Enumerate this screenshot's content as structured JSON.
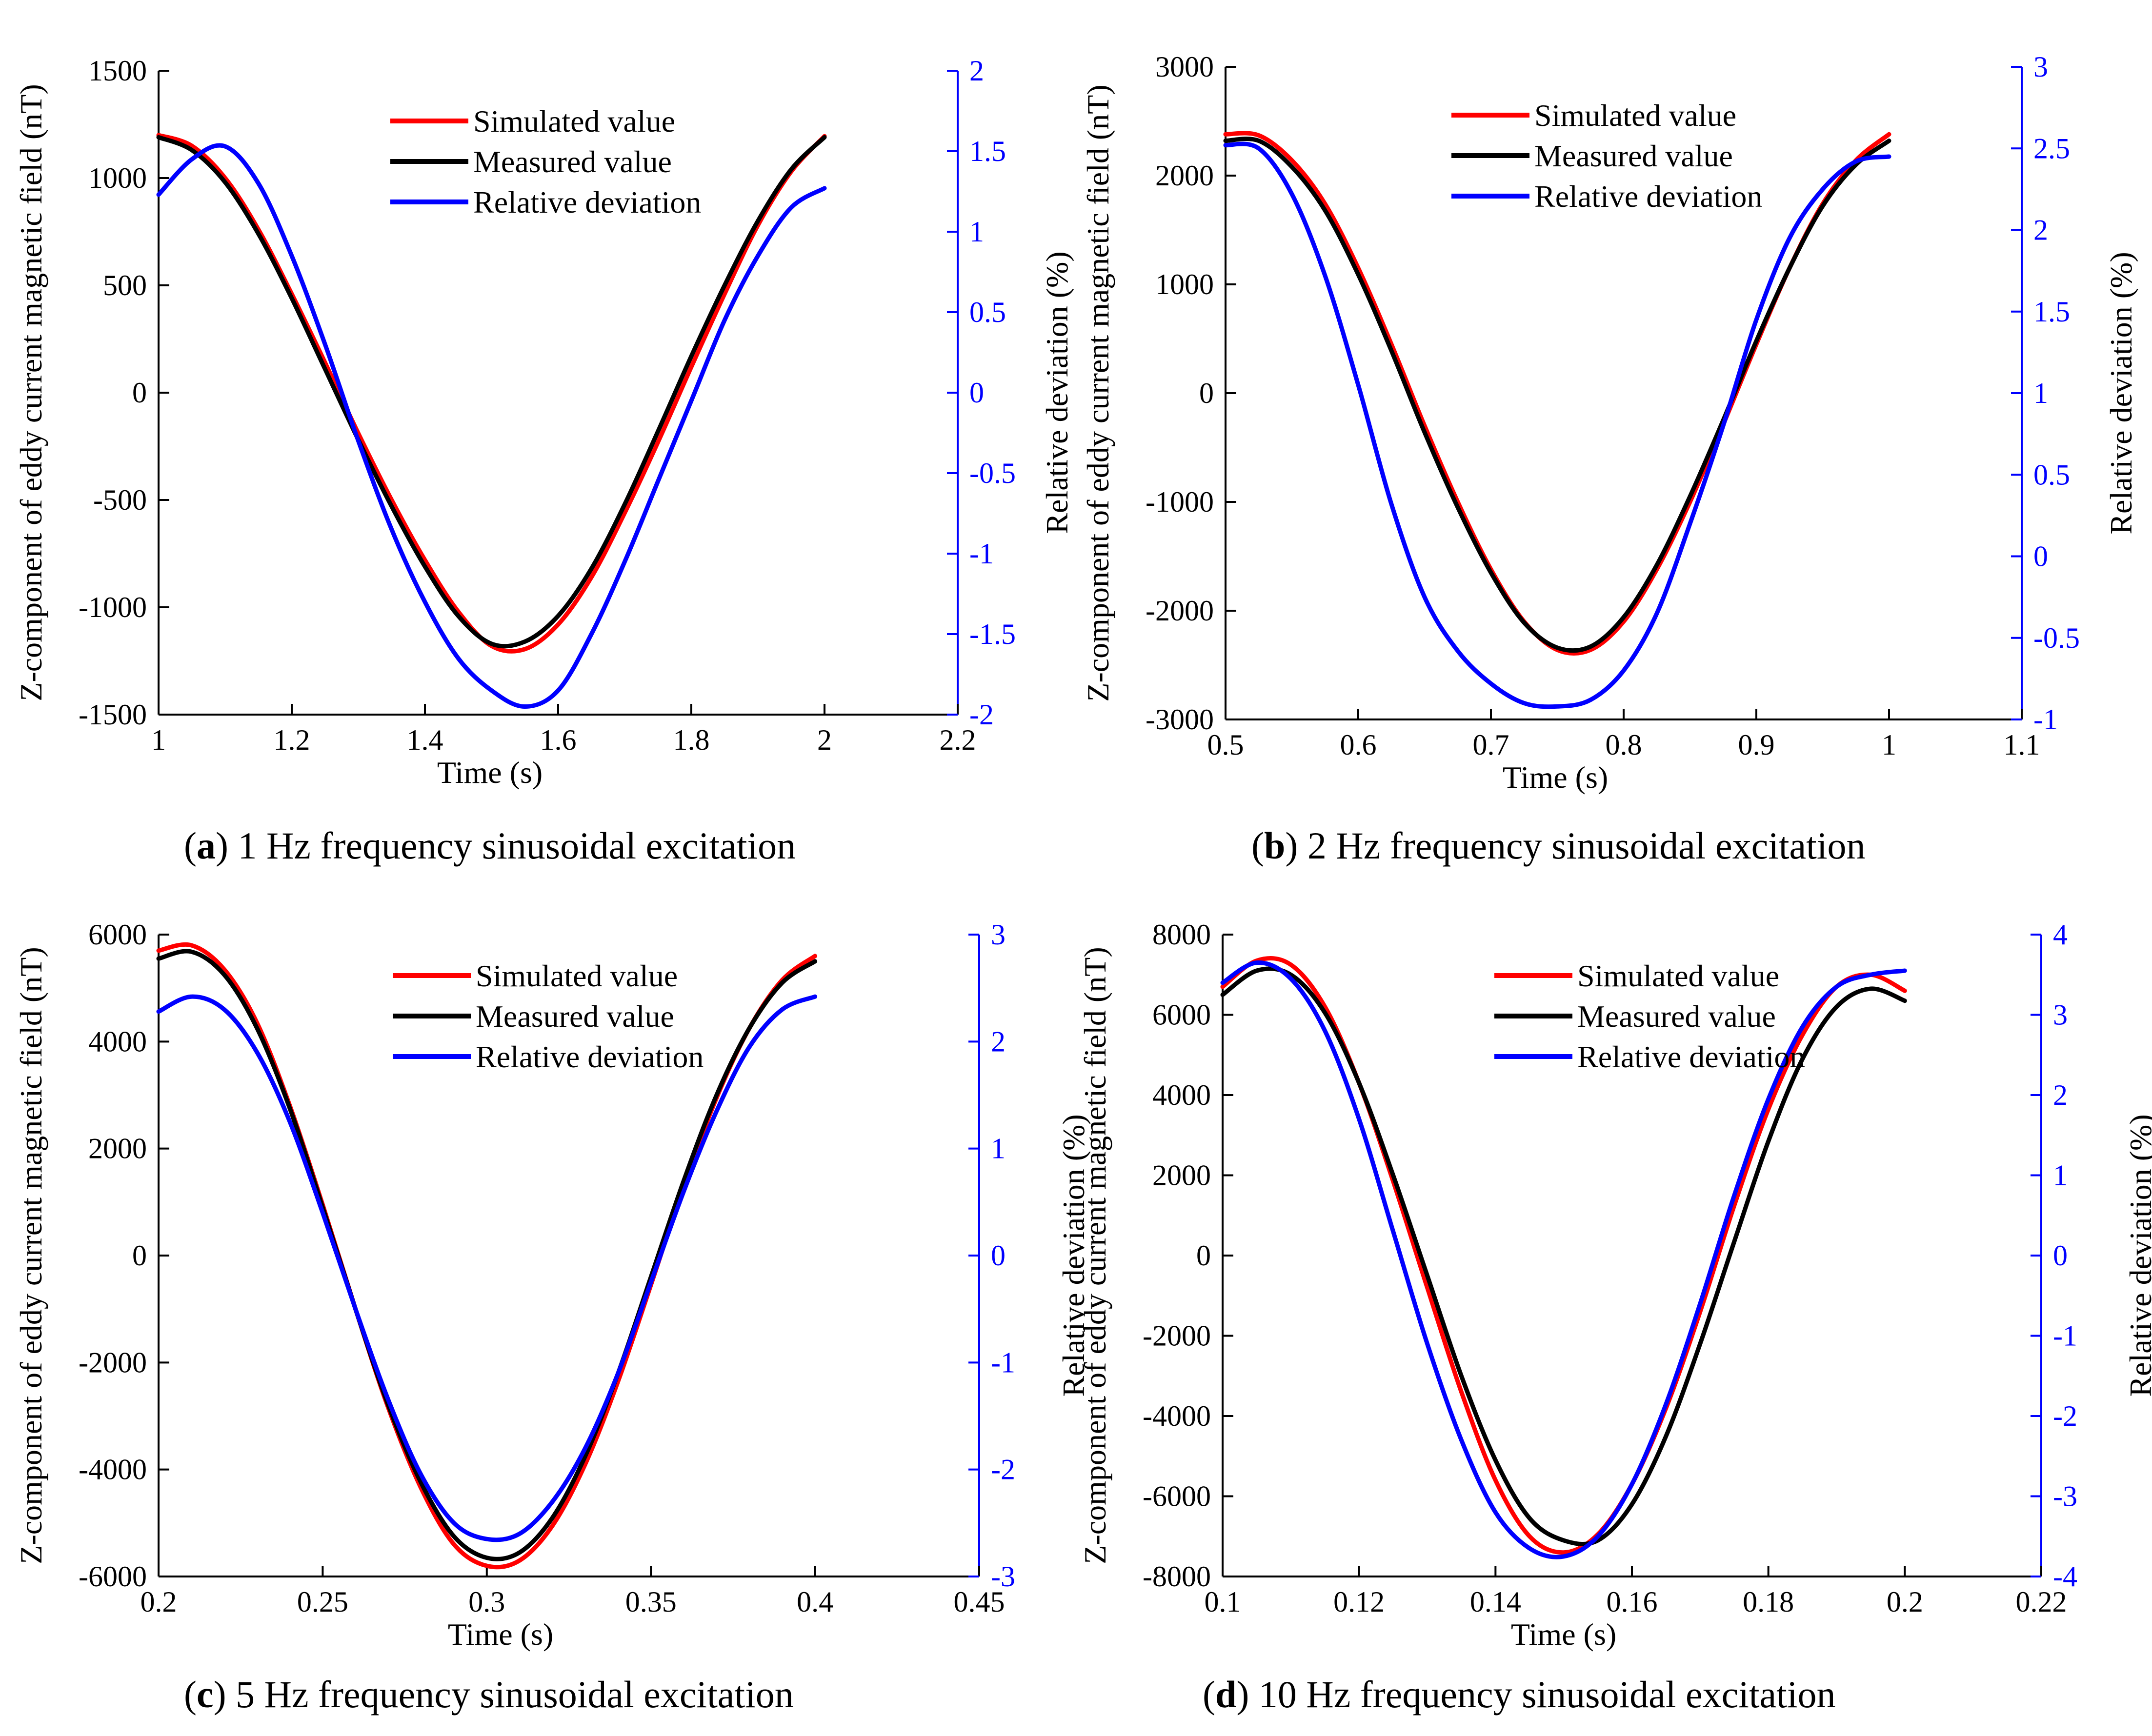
{
  "colors": {
    "simulated": "#ff0000",
    "measured": "#000000",
    "deviation": "#0000ff",
    "axis": "#000000"
  },
  "chart_data": [
    {
      "id": "a",
      "type": "line",
      "caption_letter": "a",
      "caption_text": " 1 Hz frequency sinusoidal excitation",
      "xlabel": "Time (s)",
      "ylabel_left": "Z-component of eddy current magnetic field (nT)",
      "ylabel_right": "Relative deviation (%)",
      "xlim": [
        1,
        2.2
      ],
      "ylim_left": [
        -1500,
        1500
      ],
      "ylim_right": [
        -2,
        2
      ],
      "xticks": [
        "1",
        "1.2",
        "1.4",
        "1.6",
        "1.8",
        "2",
        "2.2"
      ],
      "xtick_values": [
        1,
        1.2,
        1.4,
        1.6,
        1.8,
        2,
        2.2
      ],
      "yticks_left": [
        "-1500",
        "-1000",
        "-500",
        "0",
        "500",
        "1000",
        "1500"
      ],
      "ytick_values_left": [
        -1500,
        -1000,
        -500,
        0,
        500,
        1000,
        1500
      ],
      "yticks_right": [
        "-2",
        "-1.5",
        "-1",
        "-0.5",
        "0",
        "0.5",
        "1",
        "1.5",
        "2"
      ],
      "ytick_values_right": [
        -2,
        -1.5,
        -1,
        -0.5,
        0,
        0.5,
        1,
        1.5,
        2
      ],
      "legend": [
        "Simulated value",
        "Measured value",
        "Relative deviation"
      ],
      "series": [
        {
          "name": "Simulated value",
          "axis": "left",
          "x": [
            1.0,
            1.05,
            1.1,
            1.15,
            1.2,
            1.25,
            1.3,
            1.35,
            1.4,
            1.45,
            1.5,
            1.55,
            1.6,
            1.65,
            1.7,
            1.75,
            1.8,
            1.85,
            1.9,
            1.95,
            2.0
          ],
          "values": [
            1200,
            1150,
            1000,
            760,
            460,
            140,
            -190,
            -500,
            -780,
            -1020,
            -1180,
            -1195,
            -1080,
            -860,
            -560,
            -230,
            120,
            460,
            780,
            1030,
            1195
          ]
        },
        {
          "name": "Measured value",
          "axis": "left",
          "x": [
            1.0,
            1.05,
            1.1,
            1.15,
            1.2,
            1.25,
            1.3,
            1.35,
            1.4,
            1.45,
            1.5,
            1.55,
            1.6,
            1.65,
            1.7,
            1.75,
            1.8,
            1.85,
            1.9,
            1.95,
            2.0
          ],
          "values": [
            1190,
            1130,
            980,
            740,
            440,
            110,
            -220,
            -530,
            -810,
            -1040,
            -1170,
            -1160,
            -1040,
            -820,
            -520,
            -180,
            170,
            500,
            800,
            1040,
            1190
          ]
        },
        {
          "name": "Relative deviation",
          "axis": "right",
          "x": [
            1.0,
            1.05,
            1.1,
            1.15,
            1.2,
            1.25,
            1.3,
            1.35,
            1.4,
            1.45,
            1.5,
            1.55,
            1.6,
            1.65,
            1.7,
            1.75,
            1.8,
            1.85,
            1.9,
            1.95,
            2.0
          ],
          "values": [
            1.23,
            1.45,
            1.53,
            1.3,
            0.85,
            0.3,
            -0.3,
            -0.85,
            -1.3,
            -1.65,
            -1.85,
            -1.95,
            -1.85,
            -1.5,
            -1.05,
            -0.55,
            -0.05,
            0.45,
            0.85,
            1.15,
            1.27
          ]
        }
      ]
    },
    {
      "id": "b",
      "type": "line",
      "caption_letter": "b",
      "caption_text": " 2 Hz frequency sinusoidal excitation",
      "xlabel": "Time (s)",
      "ylabel_left": "Z-component of eddy current magnetic field (nT)",
      "ylabel_right": "Relative deviation (%)",
      "xlim": [
        0.5,
        1.1
      ],
      "ylim_left": [
        -3000,
        3000
      ],
      "ylim_right": [
        -1,
        3
      ],
      "xticks": [
        "0.5",
        "0.6",
        "0.7",
        "0.8",
        "0.9",
        "1",
        "1.1"
      ],
      "xtick_values": [
        0.5,
        0.6,
        0.7,
        0.8,
        0.9,
        1,
        1.1
      ],
      "yticks_left": [
        "-3000",
        "-2000",
        "-1000",
        "0",
        "1000",
        "2000",
        "3000"
      ],
      "ytick_values_left": [
        -3000,
        -2000,
        -1000,
        0,
        1000,
        2000,
        3000
      ],
      "yticks_right": [
        "-1",
        "-0.5",
        "0",
        "0.5",
        "1",
        "1.5",
        "2",
        "2.5",
        "3"
      ],
      "ytick_values_right": [
        -1,
        -0.5,
        0,
        0.5,
        1,
        1.5,
        2,
        2.5,
        3
      ],
      "legend": [
        "Simulated value",
        "Measured value",
        "Relative deviation"
      ],
      "series": [
        {
          "name": "Simulated value",
          "axis": "left",
          "x": [
            0.5,
            0.525,
            0.55,
            0.575,
            0.6,
            0.625,
            0.65,
            0.675,
            0.7,
            0.725,
            0.75,
            0.775,
            0.8,
            0.825,
            0.85,
            0.875,
            0.9,
            0.925,
            0.95,
            0.975,
            1.0
          ],
          "values": [
            2380,
            2370,
            2140,
            1740,
            1150,
            450,
            -300,
            -1000,
            -1620,
            -2100,
            -2360,
            -2360,
            -2100,
            -1620,
            -1000,
            -290,
            450,
            1150,
            1740,
            2140,
            2380
          ]
        },
        {
          "name": "Measured value",
          "axis": "left",
          "x": [
            0.5,
            0.525,
            0.55,
            0.575,
            0.6,
            0.625,
            0.65,
            0.675,
            0.7,
            0.725,
            0.75,
            0.775,
            0.8,
            0.825,
            0.85,
            0.875,
            0.9,
            0.925,
            0.95,
            0.975,
            1.0
          ],
          "values": [
            2320,
            2320,
            2080,
            1680,
            1090,
            390,
            -360,
            -1050,
            -1650,
            -2110,
            -2340,
            -2330,
            -2060,
            -1580,
            -950,
            -250,
            480,
            1150,
            1720,
            2100,
            2320
          ]
        },
        {
          "name": "Relative deviation",
          "axis": "right",
          "x": [
            0.5,
            0.525,
            0.55,
            0.575,
            0.6,
            0.625,
            0.65,
            0.675,
            0.7,
            0.725,
            0.75,
            0.775,
            0.8,
            0.825,
            0.85,
            0.875,
            0.9,
            0.925,
            0.95,
            0.975,
            1.0
          ],
          "values": [
            2.52,
            2.5,
            2.22,
            1.72,
            1.05,
            0.32,
            -0.25,
            -0.58,
            -0.78,
            -0.9,
            -0.92,
            -0.88,
            -0.7,
            -0.35,
            0.2,
            0.8,
            1.45,
            1.95,
            2.25,
            2.42,
            2.45
          ]
        }
      ]
    },
    {
      "id": "c",
      "type": "line",
      "caption_letter": "c",
      "caption_text": " 5 Hz frequency sinusoidal excitation",
      "xlabel": "Time (s)",
      "ylabel_left": "Z-component of eddy current magnetic field (nT)",
      "ylabel_right": "Relative deviation (%)",
      "xlim": [
        0.2,
        0.45
      ],
      "ylim_left": [
        -6000,
        6000
      ],
      "ylim_right": [
        -3,
        3
      ],
      "xticks": [
        "0.2",
        "0.25",
        "0.3",
        "0.35",
        "0.4",
        "0.45"
      ],
      "xtick_values": [
        0.2,
        0.25,
        0.3,
        0.35,
        0.4,
        0.45
      ],
      "yticks_left": [
        "-6000",
        "-4000",
        "-2000",
        "0",
        "2000",
        "4000",
        "6000"
      ],
      "ytick_values_left": [
        -6000,
        -4000,
        -2000,
        0,
        2000,
        4000,
        6000
      ],
      "yticks_right": [
        "-3",
        "-2",
        "-1",
        "0",
        "1",
        "2",
        "3"
      ],
      "ytick_values_right": [
        -3,
        -2,
        -1,
        0,
        1,
        2,
        3
      ],
      "legend": [
        "Simulated value",
        "Measured value",
        "Relative deviation"
      ],
      "series": [
        {
          "name": "Simulated value",
          "axis": "left",
          "x": [
            0.2,
            0.21,
            0.22,
            0.23,
            0.24,
            0.25,
            0.26,
            0.27,
            0.28,
            0.29,
            0.3,
            0.31,
            0.32,
            0.33,
            0.34,
            0.35,
            0.36,
            0.37,
            0.38,
            0.39,
            0.4
          ],
          "values": [
            5700,
            5800,
            5350,
            4350,
            2800,
            950,
            -1000,
            -2850,
            -4350,
            -5400,
            -5800,
            -5700,
            -5050,
            -3900,
            -2350,
            -550,
            1300,
            2950,
            4250,
            5150,
            5600
          ]
        },
        {
          "name": "Measured value",
          "axis": "left",
          "x": [
            0.2,
            0.21,
            0.22,
            0.23,
            0.24,
            0.25,
            0.26,
            0.27,
            0.28,
            0.29,
            0.3,
            0.31,
            0.32,
            0.33,
            0.34,
            0.35,
            0.36,
            0.37,
            0.38,
            0.39,
            0.4
          ],
          "values": [
            5550,
            5680,
            5250,
            4250,
            2750,
            900,
            -1000,
            -2800,
            -4250,
            -5250,
            -5650,
            -5550,
            -4900,
            -3750,
            -2200,
            -400,
            1400,
            3000,
            4250,
            5100,
            5500
          ]
        },
        {
          "name": "Relative deviation",
          "axis": "right",
          "x": [
            0.2,
            0.21,
            0.22,
            0.23,
            0.24,
            0.25,
            0.26,
            0.27,
            0.28,
            0.29,
            0.3,
            0.31,
            0.32,
            0.33,
            0.34,
            0.35,
            0.36,
            0.37,
            0.38,
            0.39,
            0.4
          ],
          "values": [
            2.28,
            2.42,
            2.3,
            1.9,
            1.25,
            0.4,
            -0.5,
            -1.35,
            -2.05,
            -2.5,
            -2.65,
            -2.6,
            -2.3,
            -1.8,
            -1.1,
            -0.25,
            0.6,
            1.35,
            1.95,
            2.3,
            2.42
          ]
        }
      ]
    },
    {
      "id": "d",
      "type": "line",
      "caption_letter": "d",
      "caption_text": " 10 Hz frequency sinusoidal excitation",
      "xlabel": "Time (s)",
      "ylabel_left": "Z-component of eddy current magnetic field (nT)",
      "ylabel_right": "Relative deviation (%)",
      "xlim": [
        0.1,
        0.22
      ],
      "ylim_left": [
        -8000,
        8000
      ],
      "ylim_right": [
        -4,
        4
      ],
      "xticks": [
        "0.1",
        "0.12",
        "0.14",
        "0.16",
        "0.18",
        "0.2",
        "0.22"
      ],
      "xtick_values": [
        0.1,
        0.12,
        0.14,
        0.16,
        0.18,
        0.2,
        0.22
      ],
      "yticks_left": [
        "-8000",
        "-6000",
        "-4000",
        "-2000",
        "0",
        "2000",
        "4000",
        "6000",
        "8000"
      ],
      "ytick_values_left": [
        -8000,
        -6000,
        -4000,
        -2000,
        0,
        2000,
        4000,
        6000,
        8000
      ],
      "yticks_right": [
        "-4",
        "-3",
        "-2",
        "-1",
        "0",
        "1",
        "2",
        "3",
        "4"
      ],
      "ytick_values_right": [
        -4,
        -3,
        -2,
        -1,
        0,
        1,
        2,
        3,
        4
      ],
      "legend": [
        "Simulated value",
        "Measured value",
        "Relative deviation"
      ],
      "series": [
        {
          "name": "Simulated value",
          "axis": "left",
          "x": [
            0.1,
            0.105,
            0.11,
            0.115,
            0.12,
            0.125,
            0.13,
            0.135,
            0.14,
            0.145,
            0.15,
            0.155,
            0.16,
            0.165,
            0.17,
            0.175,
            0.18,
            0.185,
            0.19,
            0.195,
            0.2
          ],
          "values": [
            6700,
            7350,
            7250,
            6200,
            4300,
            1850,
            -800,
            -3400,
            -5600,
            -7000,
            -7400,
            -6950,
            -5700,
            -3800,
            -1400,
            1250,
            3650,
            5500,
            6700,
            7000,
            6600
          ]
        },
        {
          "name": "Measured value",
          "axis": "left",
          "x": [
            0.1,
            0.105,
            0.11,
            0.115,
            0.12,
            0.125,
            0.13,
            0.135,
            0.14,
            0.145,
            0.15,
            0.155,
            0.16,
            0.165,
            0.17,
            0.175,
            0.18,
            0.185,
            0.19,
            0.195,
            0.2
          ],
          "values": [
            6500,
            7100,
            7000,
            6050,
            4300,
            2000,
            -500,
            -3000,
            -5100,
            -6550,
            -7100,
            -7100,
            -6200,
            -4500,
            -2200,
            350,
            2850,
            4900,
            6200,
            6650,
            6350
          ]
        },
        {
          "name": "Relative deviation",
          "axis": "right",
          "x": [
            0.1,
            0.105,
            0.11,
            0.115,
            0.12,
            0.125,
            0.13,
            0.135,
            0.14,
            0.145,
            0.15,
            0.155,
            0.16,
            0.165,
            0.17,
            0.175,
            0.18,
            0.185,
            0.19,
            0.195,
            0.2
          ],
          "values": [
            3.4,
            3.65,
            3.45,
            2.8,
            1.7,
            0.3,
            -1.1,
            -2.3,
            -3.2,
            -3.65,
            -3.75,
            -3.5,
            -2.85,
            -1.85,
            -0.6,
            0.75,
            1.95,
            2.85,
            3.35,
            3.5,
            3.55
          ]
        }
      ]
    }
  ]
}
